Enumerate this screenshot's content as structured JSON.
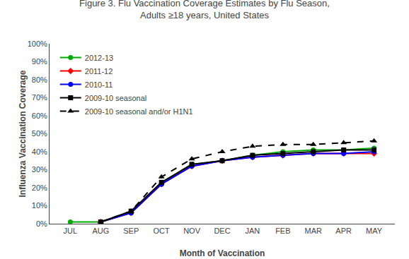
{
  "chart_data": {
    "type": "line",
    "title": "Figure 3. Flu Vaccination Coverage Estimates by Flu Season,\nAdults ≥18 years, United States",
    "x_label": "Month of Vaccination",
    "y_label": "Influenza Vaccination Coverage",
    "categories": [
      "JUL",
      "AUG",
      "SEP",
      "OCT",
      "NOV",
      "DEC",
      "JAN",
      "FEB",
      "MAR",
      "APR",
      "MAY"
    ],
    "series": [
      {
        "name": "2012-13",
        "color": "#00aa00",
        "line_style": "solid",
        "marker": "circle",
        "values": [
          1,
          1,
          6,
          22,
          33,
          35,
          38,
          40,
          41,
          41,
          42
        ]
      },
      {
        "name": "2011-12",
        "color": "#ff0000",
        "line_style": "solid",
        "marker": "diamond",
        "values": [
          null,
          1,
          6,
          22,
          32,
          35,
          37,
          38,
          39,
          39,
          39
        ]
      },
      {
        "name": "2010-11",
        "color": "#0000ff",
        "line_style": "solid",
        "marker": "circle",
        "values": [
          null,
          1,
          6,
          22,
          32,
          35,
          37,
          38,
          39,
          39,
          40
        ]
      },
      {
        "name": "2009-10 seasonal",
        "color": "#000000",
        "line_style": "solid",
        "marker": "square",
        "values": [
          null,
          1,
          7,
          23,
          33,
          35,
          38,
          39,
          40,
          41,
          41
        ]
      },
      {
        "name": "2009-10 seasonal and/or H1N1",
        "color": "#000000",
        "line_style": "dash",
        "marker": "triangle-up",
        "values": [
          null,
          1,
          7,
          26,
          36,
          40,
          43,
          44,
          44,
          45,
          46
        ]
      }
    ],
    "ylim": [
      0,
      100
    ],
    "yticks": [
      {
        "value": 0,
        "label": "0%"
      },
      {
        "value": 10,
        "label": "10%"
      },
      {
        "value": 20,
        "label": "20%"
      },
      {
        "value": 30,
        "label": "30%"
      },
      {
        "value": 40,
        "label": "40%"
      },
      {
        "value": 50,
        "label": "50%"
      },
      {
        "value": 60,
        "label": "60%"
      },
      {
        "value": 70,
        "label": "70%"
      },
      {
        "value": 80,
        "label": "80%"
      },
      {
        "value": 90,
        "label": "90%"
      },
      {
        "value": 100,
        "label": "100%"
      }
    ],
    "grid": false,
    "legend": "upper left"
  }
}
